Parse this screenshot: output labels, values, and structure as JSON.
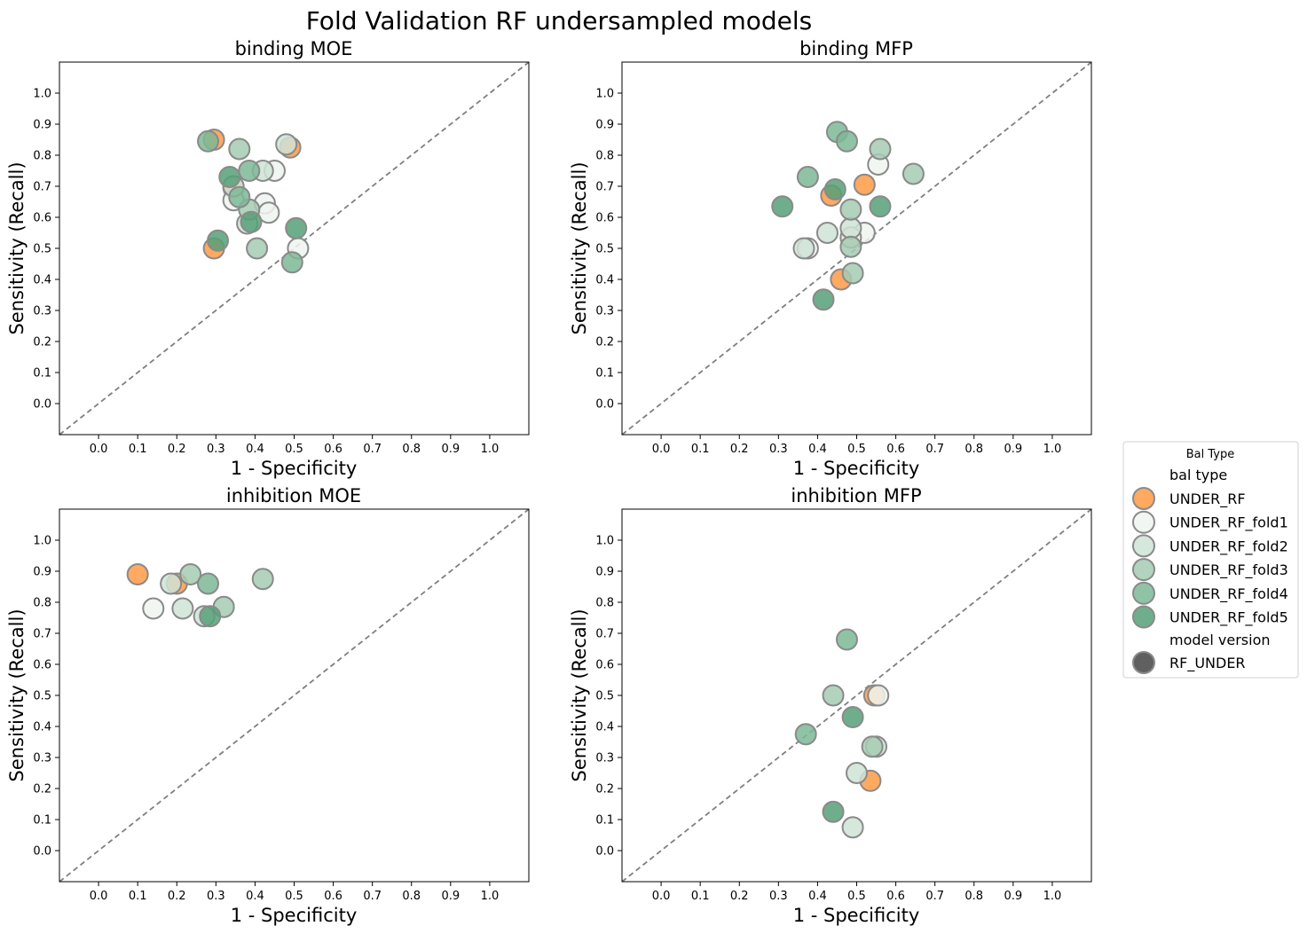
{
  "title": "Fold Validation RF undersampled models",
  "colors": {
    "UNDER_RF": "#ff9a45",
    "UNDER_RF_fold1": "#eff4f0",
    "UNDER_RF_fold2": "#cfe3d6",
    "UNDER_RF_fold3": "#a5cbb2",
    "UNDER_RF_fold4": "#7db896",
    "UNDER_RF_fold5": "#56a078",
    "marker_edge": "#8a8a8a",
    "model_version_marker": "#606060",
    "diagonal": "#7f7f7f"
  },
  "legend": {
    "title": "Bal Type",
    "placement": "right",
    "section1": "bal type",
    "items": [
      "UNDER_RF",
      "UNDER_RF_fold1",
      "UNDER_RF_fold2",
      "UNDER_RF_fold3",
      "UNDER_RF_fold4",
      "UNDER_RF_fold5"
    ],
    "section2": "model version",
    "model_item": "RF_UNDER"
  },
  "chart_data": [
    {
      "type": "scatter",
      "title": "binding MOE",
      "xlabel": "1 - Specificity",
      "ylabel": "Sensitivity (Recall)",
      "xlim": [
        -0.1,
        1.1
      ],
      "ylim": [
        -0.1,
        1.1
      ],
      "ticks": [
        "0.0",
        "0.1",
        "0.2",
        "0.3",
        "0.4",
        "0.5",
        "0.6",
        "0.7",
        "0.8",
        "0.9",
        "1.0"
      ],
      "diagonal": true,
      "series": [
        {
          "name": "UNDER_RF",
          "points": [
            [
              0.295,
              0.85
            ],
            [
              0.49,
              0.825
            ],
            [
              0.345,
              0.695
            ],
            [
              0.295,
              0.5
            ]
          ]
        },
        {
          "name": "UNDER_RF_fold1",
          "points": [
            [
              0.45,
              0.75
            ],
            [
              0.425,
              0.645
            ],
            [
              0.345,
              0.655
            ],
            [
              0.435,
              0.615
            ],
            [
              0.51,
              0.5
            ]
          ]
        },
        {
          "name": "UNDER_RF_fold2",
          "points": [
            [
              0.48,
              0.835
            ],
            [
              0.42,
              0.75
            ],
            [
              0.345,
              0.7
            ],
            [
              0.38,
              0.58
            ]
          ]
        },
        {
          "name": "UNDER_RF_fold3",
          "points": [
            [
              0.36,
              0.82
            ],
            [
              0.385,
              0.625
            ],
            [
              0.405,
              0.5
            ]
          ]
        },
        {
          "name": "UNDER_RF_fold4",
          "points": [
            [
              0.28,
              0.845
            ],
            [
              0.385,
              0.75
            ],
            [
              0.36,
              0.665
            ],
            [
              0.495,
              0.455
            ]
          ]
        },
        {
          "name": "UNDER_RF_fold5",
          "points": [
            [
              0.335,
              0.73
            ],
            [
              0.39,
              0.585
            ],
            [
              0.505,
              0.565
            ],
            [
              0.305,
              0.525
            ]
          ]
        }
      ]
    },
    {
      "type": "scatter",
      "title": "binding MFP",
      "xlabel": "1 - Specificity",
      "ylabel": "Sensitivity (Recall)",
      "xlim": [
        -0.1,
        1.1
      ],
      "ylim": [
        -0.1,
        1.1
      ],
      "ticks": [
        "0.0",
        "0.1",
        "0.2",
        "0.3",
        "0.4",
        "0.5",
        "0.6",
        "0.7",
        "0.8",
        "0.9",
        "1.0"
      ],
      "diagonal": true,
      "series": [
        {
          "name": "UNDER_RF",
          "points": [
            [
              0.52,
              0.705
            ],
            [
              0.435,
              0.67
            ],
            [
              0.485,
              0.535
            ],
            [
              0.46,
              0.4
            ]
          ]
        },
        {
          "name": "UNDER_RF_fold1",
          "points": [
            [
              0.555,
              0.77
            ],
            [
              0.52,
              0.55
            ],
            [
              0.375,
              0.5
            ],
            [
              0.485,
              0.535
            ]
          ]
        },
        {
          "name": "UNDER_RF_fold2",
          "points": [
            [
              0.425,
              0.55
            ],
            [
              0.365,
              0.5
            ],
            [
              0.485,
              0.565
            ]
          ]
        },
        {
          "name": "UNDER_RF_fold3",
          "points": [
            [
              0.56,
              0.82
            ],
            [
              0.645,
              0.74
            ],
            [
              0.485,
              0.625
            ],
            [
              0.485,
              0.505
            ],
            [
              0.49,
              0.42
            ]
          ]
        },
        {
          "name": "UNDER_RF_fold4",
          "points": [
            [
              0.45,
              0.875
            ],
            [
              0.475,
              0.845
            ],
            [
              0.375,
              0.73
            ]
          ]
        },
        {
          "name": "UNDER_RF_fold5",
          "points": [
            [
              0.445,
              0.69
            ],
            [
              0.31,
              0.635
            ],
            [
              0.56,
              0.635
            ],
            [
              0.415,
              0.335
            ]
          ]
        }
      ]
    },
    {
      "type": "scatter",
      "title": "inhibition MOE",
      "xlabel": "1 - Specificity",
      "ylabel": "Sensitivity (Recall)",
      "xlim": [
        -0.1,
        1.1
      ],
      "ylim": [
        -0.1,
        1.1
      ],
      "ticks": [
        "0.0",
        "0.1",
        "0.2",
        "0.3",
        "0.4",
        "0.5",
        "0.6",
        "0.7",
        "0.8",
        "0.9",
        "1.0"
      ],
      "diagonal": true,
      "series": [
        {
          "name": "UNDER_RF",
          "points": [
            [
              0.1,
              0.89
            ],
            [
              0.2,
              0.86
            ]
          ]
        },
        {
          "name": "UNDER_RF_fold1",
          "points": [
            [
              0.14,
              0.78
            ]
          ]
        },
        {
          "name": "UNDER_RF_fold2",
          "points": [
            [
              0.185,
              0.86
            ],
            [
              0.215,
              0.78
            ],
            [
              0.27,
              0.755
            ]
          ]
        },
        {
          "name": "UNDER_RF_fold3",
          "points": [
            [
              0.235,
              0.89
            ],
            [
              0.42,
              0.875
            ],
            [
              0.32,
              0.785
            ]
          ]
        },
        {
          "name": "UNDER_RF_fold4",
          "points": [
            [
              0.28,
              0.86
            ]
          ]
        },
        {
          "name": "UNDER_RF_fold5",
          "points": [
            [
              0.285,
              0.755
            ]
          ]
        }
      ]
    },
    {
      "type": "scatter",
      "title": "inhibition MFP",
      "xlabel": "1 - Specificity",
      "ylabel": "Sensitivity (Recall)",
      "xlim": [
        -0.1,
        1.1
      ],
      "ylim": [
        -0.1,
        1.1
      ],
      "ticks": [
        "0.0",
        "0.1",
        "0.2",
        "0.3",
        "0.4",
        "0.5",
        "0.6",
        "0.7",
        "0.8",
        "0.9",
        "1.0"
      ],
      "diagonal": true,
      "series": [
        {
          "name": "UNDER_RF",
          "points": [
            [
              0.545,
              0.5
            ],
            [
              0.535,
              0.225
            ]
          ]
        },
        {
          "name": "UNDER_RF_fold1",
          "points": [
            [
              0.555,
              0.5
            ]
          ]
        },
        {
          "name": "UNDER_RF_fold2",
          "points": [
            [
              0.5,
              0.25
            ],
            [
              0.55,
              0.335
            ],
            [
              0.49,
              0.075
            ]
          ]
        },
        {
          "name": "UNDER_RF_fold3",
          "points": [
            [
              0.44,
              0.5
            ],
            [
              0.54,
              0.335
            ]
          ]
        },
        {
          "name": "UNDER_RF_fold4",
          "points": [
            [
              0.475,
              0.68
            ],
            [
              0.37,
              0.375
            ]
          ]
        },
        {
          "name": "UNDER_RF_fold5",
          "points": [
            [
              0.49,
              0.43
            ],
            [
              0.44,
              0.125
            ]
          ]
        }
      ]
    }
  ]
}
